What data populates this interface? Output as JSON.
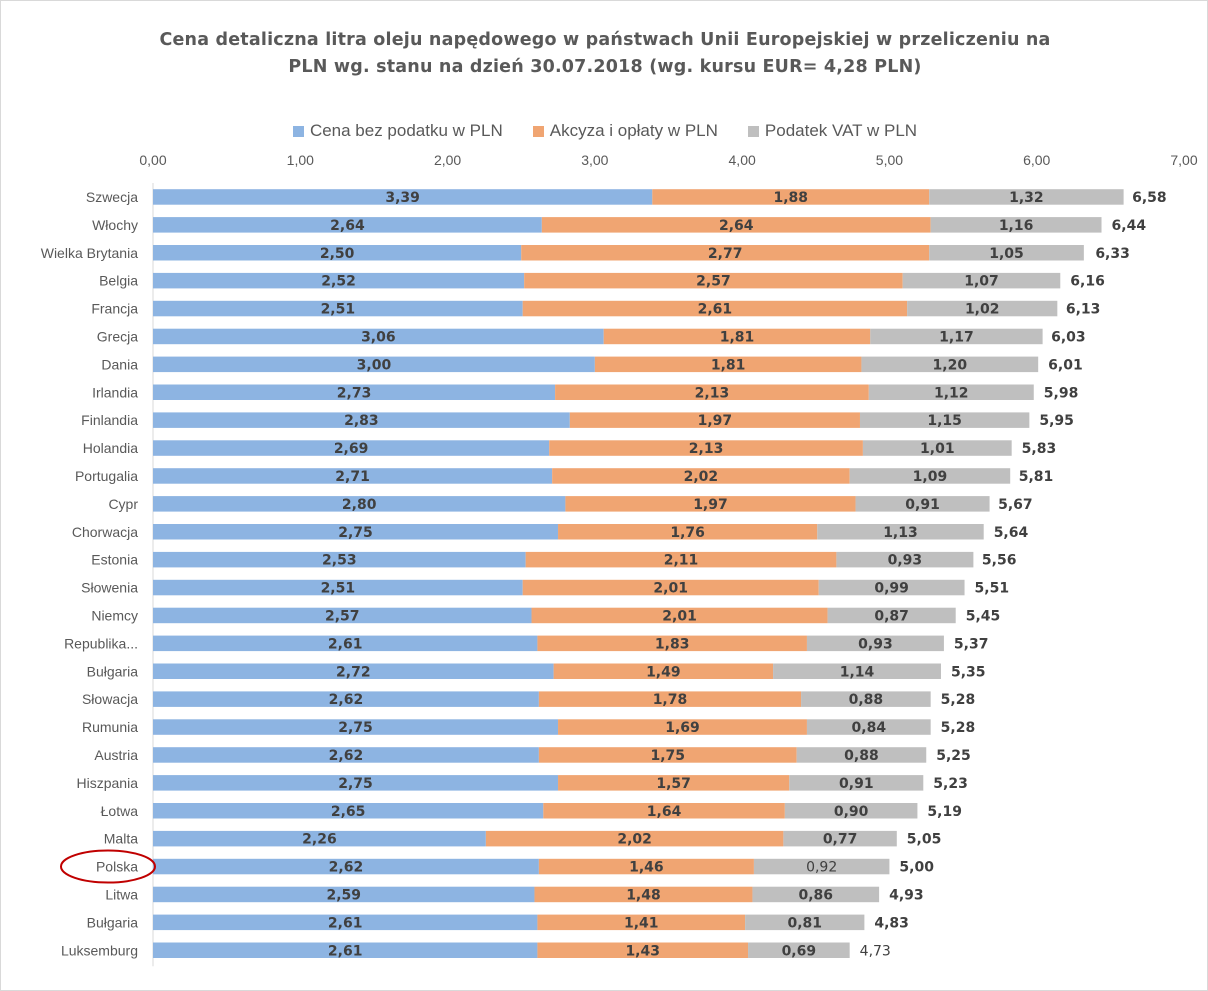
{
  "chart_data": {
    "type": "bar",
    "orientation": "horizontal",
    "stacked": true,
    "title_lines": [
      "Cena detaliczna litra oleju napędowego w państwach Unii Europejskiej w przeliczeniu na",
      "PLN wg. stanu na dzień 30.07.2018 (wg. kursu EUR= 4,28 PLN)"
    ],
    "x_ticks": [
      "0,00",
      "1,00",
      "2,00",
      "3,00",
      "4,00",
      "5,00",
      "6,00",
      "7,00"
    ],
    "xlim": [
      0,
      7
    ],
    "xaxis_position": "top",
    "legend_position": "top",
    "grid": true,
    "highlighted_category": "Polska",
    "categories": [
      "Szwecja",
      "Włochy",
      "Wielka Brytania",
      "Belgia",
      "Francja",
      "Grecja",
      "Dania",
      "Irlandia",
      "Finlandia",
      "Holandia",
      "Portugalia",
      "Cypr",
      "Chorwacja",
      "Estonia",
      "Słowenia",
      "Niemcy",
      "Republika...",
      "Bułgaria",
      "Słowacja",
      "Rumunia",
      "Austria",
      "Hiszpania",
      "Łotwa",
      "Malta",
      "Polska",
      "Litwa",
      "Bułgaria",
      "Luksemburg"
    ],
    "series": [
      {
        "name": "Cena bez podatku w PLN",
        "color": "#8db4e2",
        "values": [
          3.39,
          2.64,
          2.5,
          2.52,
          2.51,
          3.06,
          3.0,
          2.73,
          2.83,
          2.69,
          2.71,
          2.8,
          2.75,
          2.53,
          2.51,
          2.57,
          2.61,
          2.72,
          2.62,
          2.75,
          2.62,
          2.75,
          2.65,
          2.26,
          2.62,
          2.59,
          2.61,
          2.61
        ],
        "labels": [
          "3,39",
          "2,64",
          "2,50",
          "2,52",
          "2,51",
          "3,06",
          "3,00",
          "2,73",
          "2,83",
          "2,69",
          "2,71",
          "2,80",
          "2,75",
          "2,53",
          "2,51",
          "2,57",
          "2,61",
          "2,72",
          "2,62",
          "2,75",
          "2,62",
          "2,75",
          "2,65",
          "2,26",
          "2,62",
          "2,59",
          "2,61",
          "2,61"
        ]
      },
      {
        "name": "Akcyza i opłaty w PLN",
        "color": "#f0a572",
        "values": [
          1.88,
          2.64,
          2.77,
          2.57,
          2.61,
          1.81,
          1.81,
          2.13,
          1.97,
          2.13,
          2.02,
          1.97,
          1.76,
          2.11,
          2.01,
          2.01,
          1.83,
          1.49,
          1.78,
          1.69,
          1.75,
          1.57,
          1.64,
          2.02,
          1.46,
          1.48,
          1.41,
          1.43
        ],
        "labels": [
          "1,88",
          "2,64",
          "2,77",
          "2,57",
          "2,61",
          "1,81",
          "1,81",
          "2,13",
          "1,97",
          "2,13",
          "2,02",
          "1,97",
          "1,76",
          "2,11",
          "2,01",
          "2,01",
          "1,83",
          "1,49",
          "1,78",
          "1,69",
          "1,75",
          "1,57",
          "1,64",
          "2,02",
          "1,46",
          "1,48",
          "1,41",
          "1,43"
        ]
      },
      {
        "name": "Podatek VAT w PLN",
        "color": "#bfbfbf",
        "values": [
          1.32,
          1.16,
          1.05,
          1.07,
          1.02,
          1.17,
          1.2,
          1.12,
          1.15,
          1.01,
          1.09,
          0.91,
          1.13,
          0.93,
          0.99,
          0.87,
          0.93,
          1.14,
          0.88,
          0.84,
          0.88,
          0.91,
          0.9,
          0.77,
          0.92,
          0.86,
          0.81,
          0.69
        ],
        "labels": [
          "1,32",
          "1,16",
          "1,05",
          "1,07",
          "1,02",
          "1,17",
          "1,20",
          "1,12",
          "1,15",
          "1,01",
          "1,09",
          "0,91",
          "1,13",
          "0,93",
          "0,99",
          "0,87",
          "0,93",
          "1,14",
          "0,88",
          "0,84",
          "0,88",
          "0,91",
          "0,90",
          "0,77",
          "0,92",
          "0,86",
          "0,81",
          "0,69"
        ]
      }
    ],
    "totals": [
      6.58,
      6.44,
      6.33,
      6.16,
      6.13,
      6.03,
      6.01,
      5.98,
      5.95,
      5.83,
      5.81,
      5.67,
      5.64,
      5.56,
      5.51,
      5.45,
      5.37,
      5.35,
      5.28,
      5.28,
      5.25,
      5.23,
      5.19,
      5.05,
      5.0,
      4.93,
      4.83,
      4.73
    ],
    "total_labels": [
      "6,58",
      "6,44",
      "6,33",
      "6,16",
      "6,13",
      "6,03",
      "6,01",
      "5,98",
      "5,95",
      "5,83",
      "5,81",
      "5,67",
      "5,64",
      "5,56",
      "5,51",
      "5,45",
      "5,37",
      "5,35",
      "5,28",
      "5,28",
      "5,25",
      "5,23",
      "5,19",
      "5,05",
      "5,00",
      "4,93",
      "4,83",
      "4,73"
    ],
    "total_label_colors": {
      "Polska": "#e00000"
    }
  }
}
